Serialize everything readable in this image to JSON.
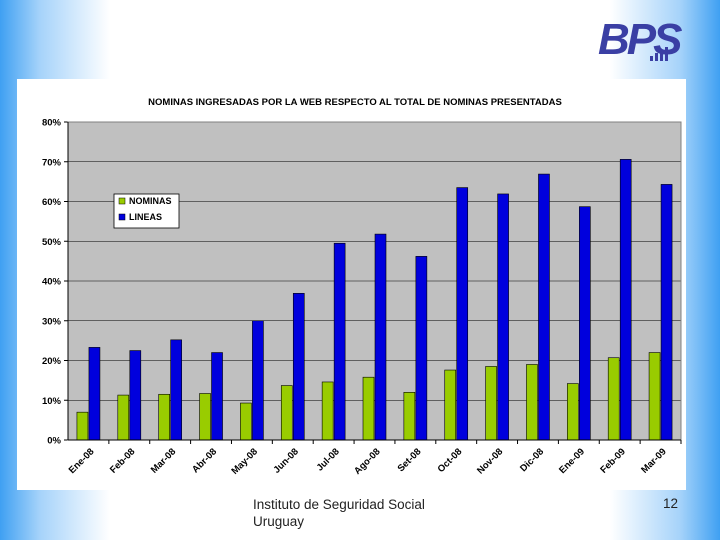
{
  "logo": {
    "text": "BPS"
  },
  "footer": {
    "org_line1": "Instituto de Seguridad Social",
    "org_line2": "Uruguay",
    "page_number": "12"
  },
  "colors": {
    "nominas": "#99cc00",
    "lineas": "#0000dd",
    "plot_bg": "#c0c0c0",
    "logo": "#3a3fa4"
  },
  "chart_data": {
    "type": "bar",
    "title": "NOMINAS INGRESADAS POR LA WEB RESPECTO AL TOTAL DE NOMINAS PRESENTADAS",
    "categories": [
      "Ene-08",
      "Feb-08",
      "Mar-08",
      "Abr-08",
      "May-08",
      "Jun-08",
      "Jul-08",
      "Ago-08",
      "Set-08",
      "Oct-08",
      "Nov-08",
      "Dic-08",
      "Ene-09",
      "Feb-09",
      "Mar-09"
    ],
    "series": [
      {
        "name": "NOMINAS",
        "values": [
          7,
          11.3,
          11.5,
          11.7,
          9.3,
          13.7,
          14.6,
          15.8,
          12,
          17.6,
          18.5,
          19,
          14.2,
          20.7,
          22
        ]
      },
      {
        "name": "LINEAS",
        "values": [
          23.3,
          22.5,
          25.2,
          22,
          30,
          36.9,
          49.5,
          51.8,
          46.2,
          63.5,
          61.9,
          66.9,
          58.7,
          70.6,
          64.3
        ]
      }
    ],
    "yticks": [
      "0%",
      "10%",
      "20%",
      "30%",
      "40%",
      "50%",
      "60%",
      "70%",
      "80%"
    ],
    "ylim": [
      0,
      80
    ],
    "xlabel": "",
    "ylabel": "",
    "grid": true,
    "legend": "top-left"
  }
}
